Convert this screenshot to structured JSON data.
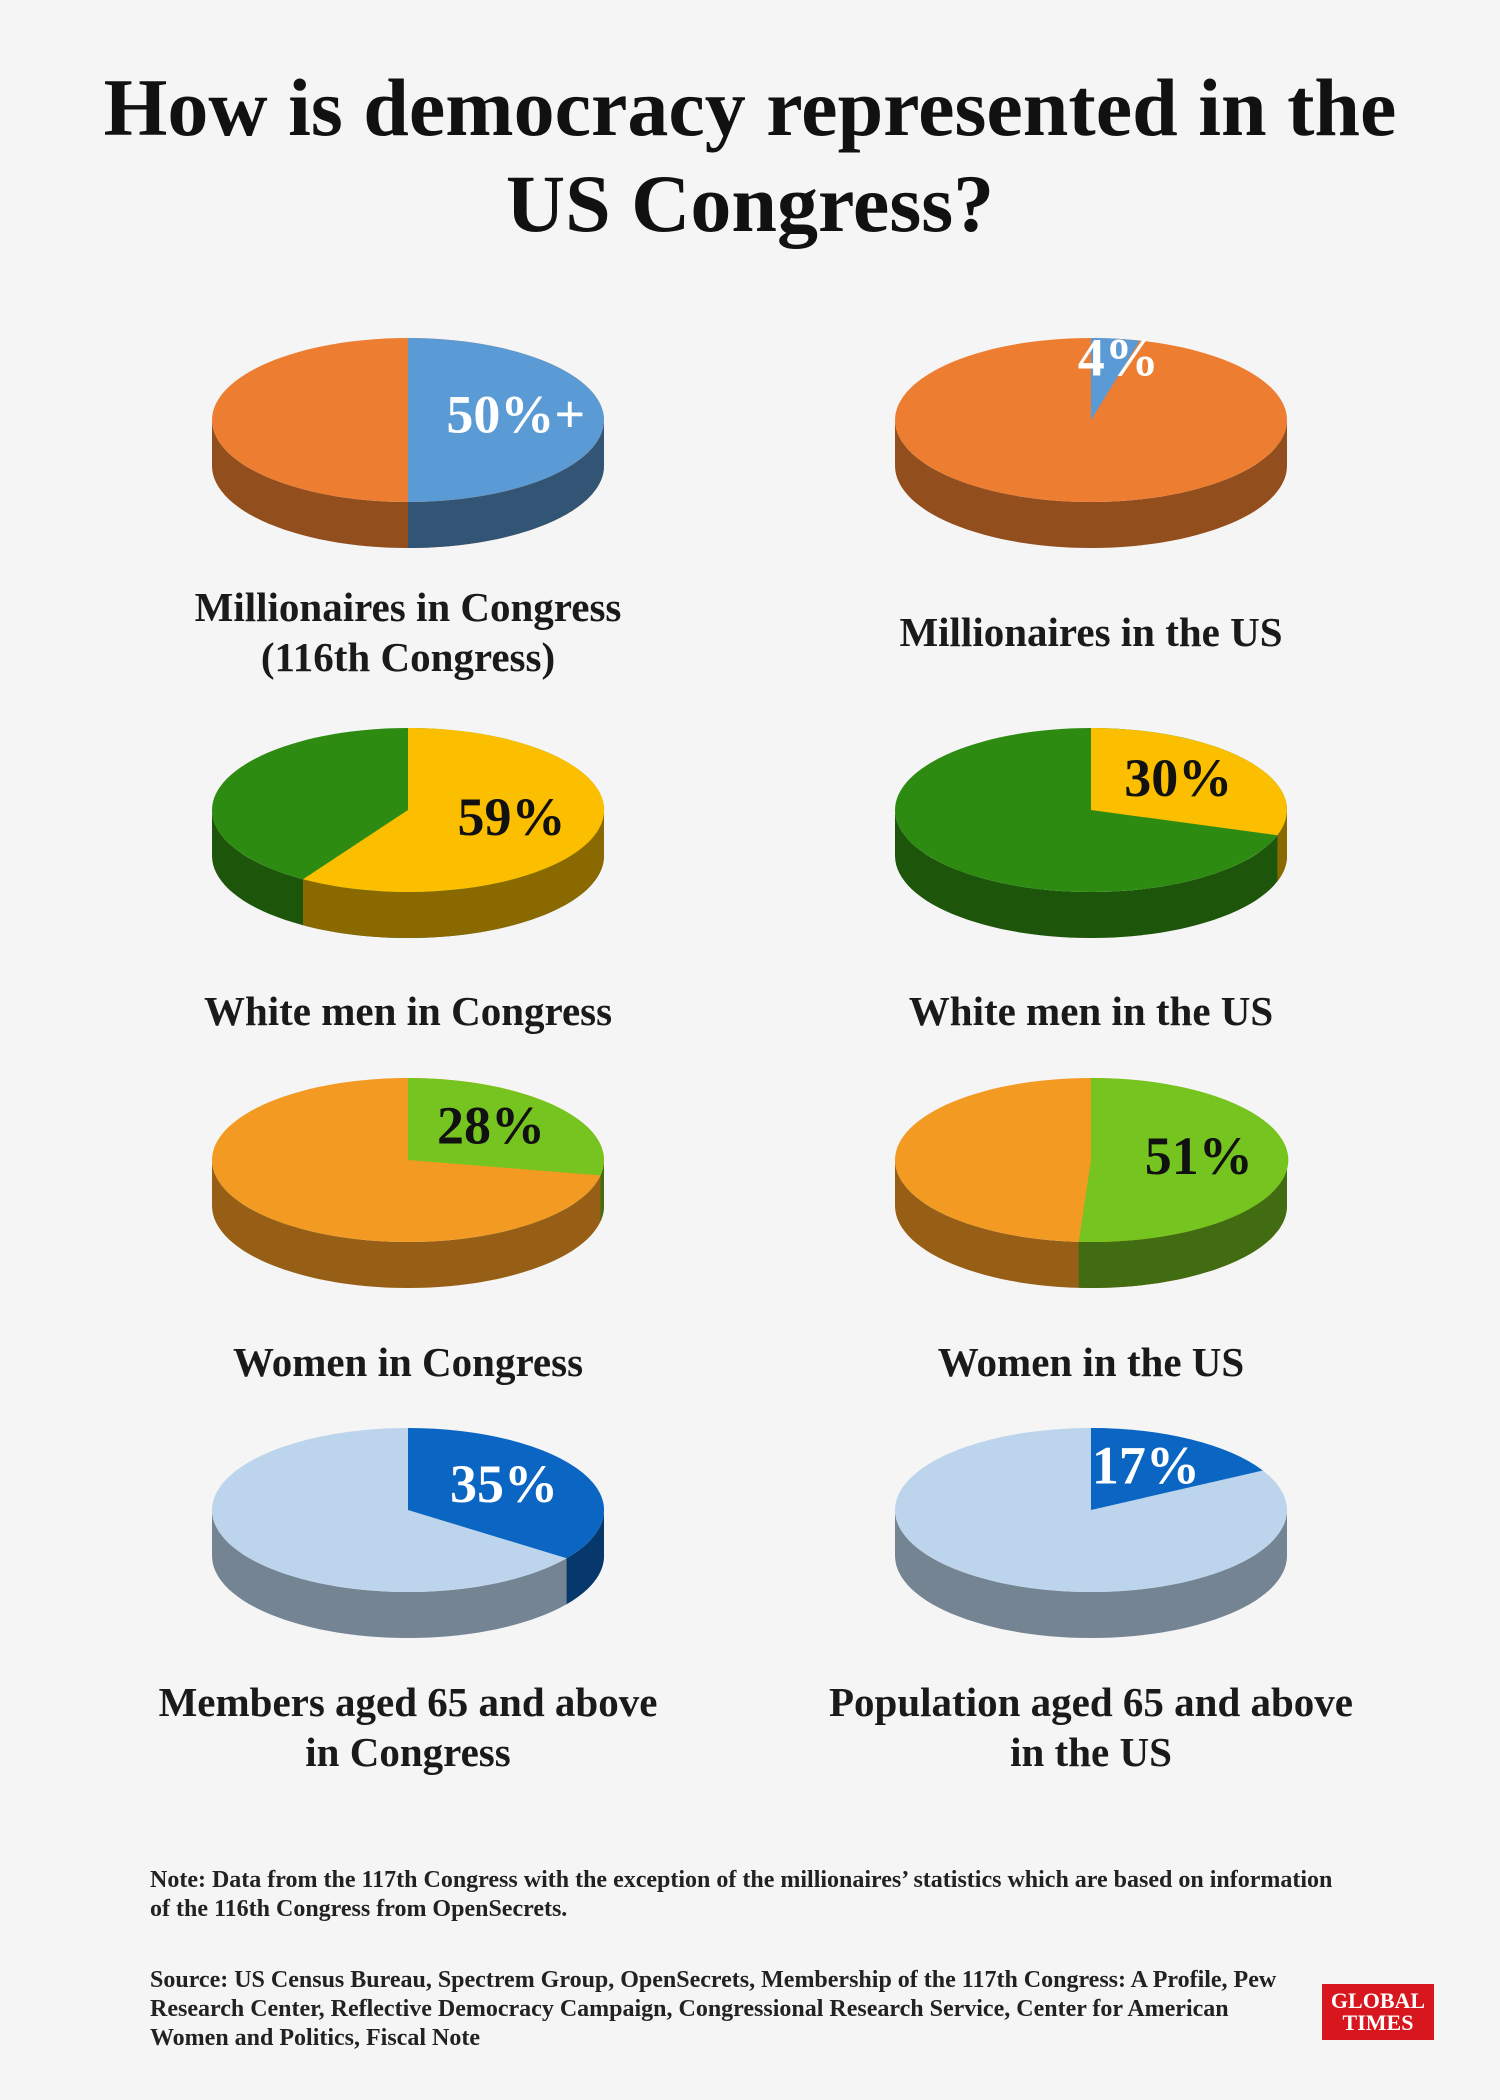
{
  "title": "How is democracy represented in the US Congress?",
  "chart_data": [
    {
      "type": "pie",
      "title": "Millionaires in Congress (116th Congress)",
      "values": [
        50
      ],
      "value_labels": [
        "50%+"
      ],
      "colors": [
        "#5b9bd5",
        "#ed7d31"
      ],
      "label_color": "#ffffff"
    },
    {
      "type": "pie",
      "title": "Millionaires in the US",
      "values": [
        4
      ],
      "value_labels": [
        "4%"
      ],
      "colors": [
        "#5b9bd5",
        "#ed7d31"
      ],
      "label_color": "#ffffff"
    },
    {
      "type": "pie",
      "title": "White men in Congress",
      "values": [
        59
      ],
      "value_labels": [
        "59%"
      ],
      "colors": [
        "#fbbf00",
        "#2e8b12"
      ],
      "label_color": "#111111"
    },
    {
      "type": "pie",
      "title": "White men in the US",
      "values": [
        30
      ],
      "value_labels": [
        "30%"
      ],
      "colors": [
        "#fbbf00",
        "#2e8b12"
      ],
      "label_color": "#111111"
    },
    {
      "type": "pie",
      "title": "Women in Congress",
      "values": [
        28
      ],
      "value_labels": [
        "28%"
      ],
      "colors": [
        "#76c41f",
        "#f29a22"
      ],
      "label_color": "#111111"
    },
    {
      "type": "pie",
      "title": "Women in the US",
      "values": [
        51
      ],
      "value_labels": [
        "51%"
      ],
      "colors": [
        "#76c41f",
        "#f29a22"
      ],
      "label_color": "#111111"
    },
    {
      "type": "pie",
      "title": "Members aged 65 and above in Congress",
      "values": [
        35
      ],
      "value_labels": [
        "35%"
      ],
      "colors": [
        "#0a66c2",
        "#bcd5ec"
      ],
      "label_color": "#ffffff"
    },
    {
      "type": "pie",
      "title": "Population aged 65 and above in the US",
      "values": [
        17
      ],
      "value_labels": [
        "17%"
      ],
      "colors": [
        "#0a66c2",
        "#bcd5ec"
      ],
      "label_color": "#ffffff"
    }
  ],
  "note": "Note: Data from the 117th Congress with the exception of the millionaires’ statistics which are based on information of the 116th Congress from OpenSecrets.",
  "source": "Source: US Census Bureau, Spectrem Group, OpenSecrets, Membership of the 117th Congress: A Profile, Pew Research Center, Reflective Democracy Campaign, Congressional Research Service, Center for American Women and Politics, Fiscal Note",
  "logo": [
    "GLOBAL",
    "TIMES"
  ]
}
